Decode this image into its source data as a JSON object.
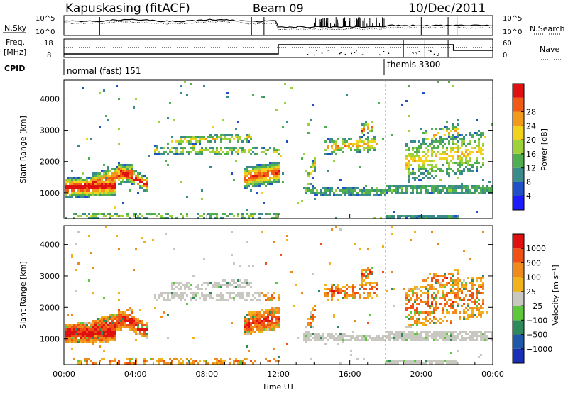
{
  "header": {
    "station": "Kapuskasing (fitACF)",
    "beam": "Beam 09",
    "date": "10/Dec/2011"
  },
  "noise_panel": {
    "left_label": "N.Sky",
    "right_label": "N.Search",
    "left_ticks": [
      "10^5",
      "10^0"
    ],
    "right_ticks": [
      "10^5",
      "10^0"
    ]
  },
  "freq_panel": {
    "left_label_1": "Freq.",
    "left_label_2": "[MHz]",
    "right_label": "Nave",
    "left_ticks": [
      "18",
      "8"
    ],
    "right_ticks": [
      "60",
      "0"
    ]
  },
  "cpid": {
    "label": "CPID",
    "modes": [
      {
        "name": "normal (fast) 151",
        "start_hour": 0
      },
      {
        "name": "themis 3300",
        "start_hour": 18
      }
    ]
  },
  "chart_data": [
    {
      "type": "heatmap",
      "title": "",
      "ylabel": "Slant Range [km]",
      "xlim": [
        0,
        24
      ],
      "ylim": [
        180,
        4600
      ],
      "yticks": [
        "1000",
        "2000",
        "3000",
        "4000"
      ],
      "colorbar": {
        "label": "Power [dB]",
        "ticks": [
          "4",
          "8",
          "12",
          "16",
          "20",
          "24",
          "28"
        ],
        "colors": [
          "#1c1cff",
          "#2050c8",
          "#3a8c8c",
          "#4fae4f",
          "#9ed23a",
          "#f2d21c",
          "#f29a1c",
          "#f05a14",
          "#e01010"
        ]
      }
    },
    {
      "type": "heatmap",
      "title": "",
      "ylabel": "Slant Range [km]",
      "xlabel": "Time UT",
      "xlim": [
        0,
        24
      ],
      "ylim": [
        180,
        4600
      ],
      "yticks": [
        "1000",
        "2000",
        "3000",
        "4000"
      ],
      "xticks": [
        "00:00",
        "04:00",
        "08:00",
        "12:00",
        "16:00",
        "20:00",
        "00:00"
      ],
      "colorbar": {
        "label": "Velocity [m s⁻¹]",
        "ticks": [
          "1000",
          "500",
          "100",
          "25",
          "−25",
          "−100",
          "−500",
          "−1000"
        ],
        "colors": [
          "#1a2fb8",
          "#1f58a8",
          "#2e8a5a",
          "#5ec83c",
          "#c8c8c0",
          "#f2b21c",
          "#f08a1c",
          "#f05014",
          "#e01010"
        ]
      }
    }
  ]
}
